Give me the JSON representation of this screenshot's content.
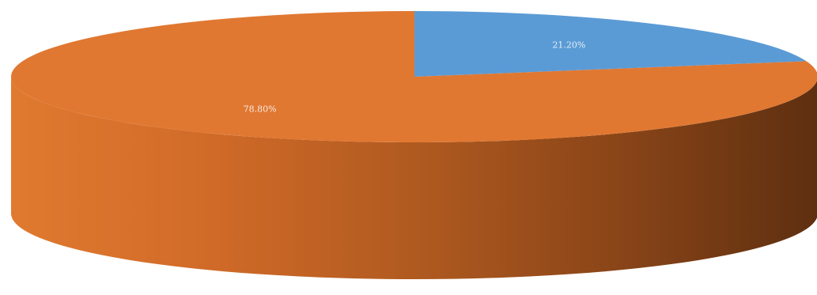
{
  "chart_data": {
    "type": "pie",
    "style": "3d",
    "title": "",
    "series": [
      {
        "values": [
          21.2,
          78.8
        ],
        "labels": [
          "21.20%",
          "78.80%"
        ],
        "colors": [
          "#5B9BD5",
          "#E07832"
        ]
      }
    ],
    "legend": "none"
  }
}
